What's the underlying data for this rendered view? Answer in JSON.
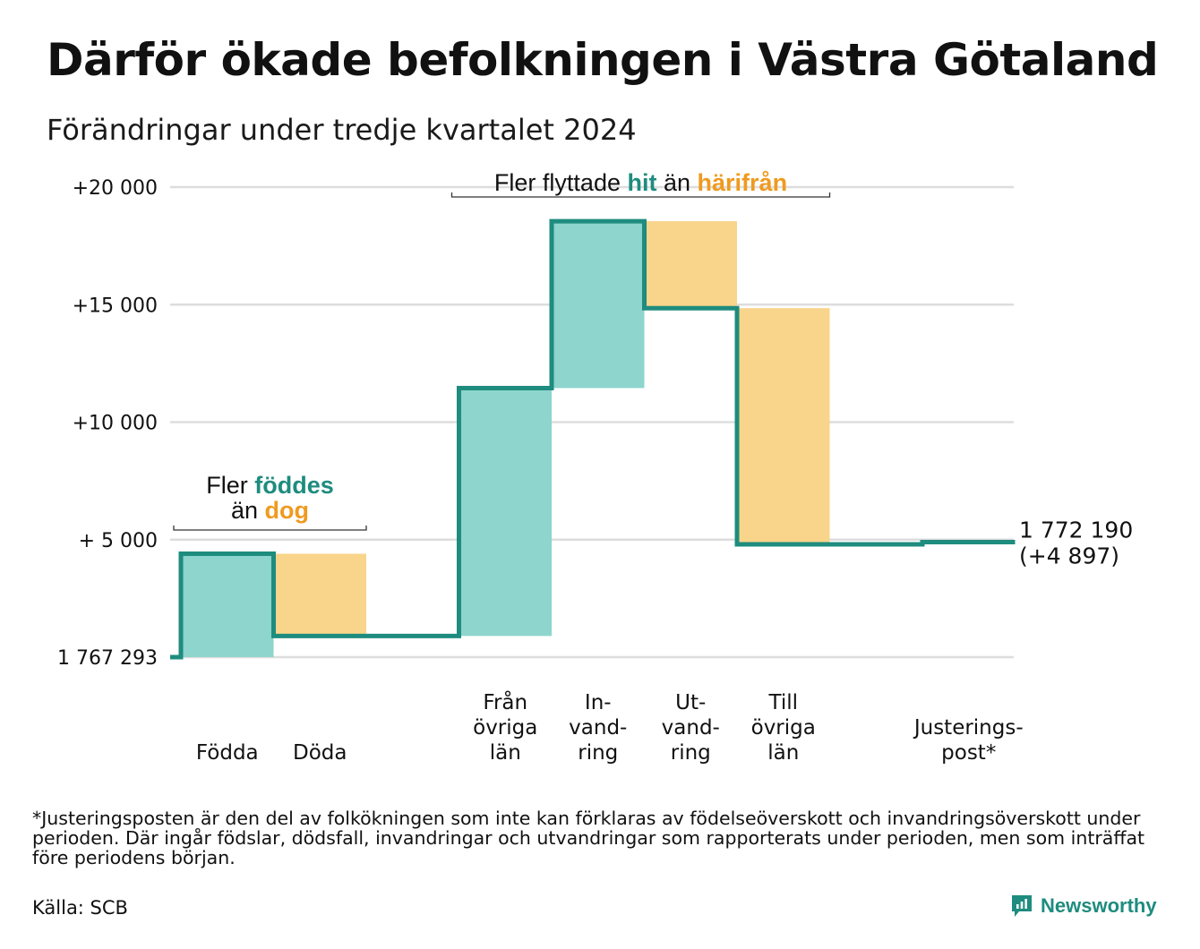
{
  "title": "Därför ökade befolkningen i Västra Götaland",
  "subtitle": "Förändringar under tredje kvartalet 2024",
  "colors": {
    "increase": "#8dd5cd",
    "decrease": "#f9d48b",
    "line": "#1e8c7e",
    "accent_orange": "#ef9a1f",
    "grid": "#dddddd"
  },
  "chart_data": {
    "type": "waterfall",
    "baseline_label": "1 767 293",
    "ylim": [
      0,
      20000
    ],
    "yticks": [
      {
        "value": 0,
        "label": "1 767 293"
      },
      {
        "value": 5000,
        "label": "+ 5 000"
      },
      {
        "value": 10000,
        "label": "+10 000"
      },
      {
        "value": 15000,
        "label": "+15 000"
      },
      {
        "value": 20000,
        "label": "+20 000"
      }
    ],
    "steps": [
      {
        "label": [
          "Födda"
        ],
        "start": 0,
        "end": 4400,
        "kind": "increase"
      },
      {
        "label": [
          "Döda"
        ],
        "start": 4400,
        "end": 900,
        "kind": "decrease"
      },
      {
        "label": [
          ""
        ],
        "start": 900,
        "end": 900,
        "kind": "none"
      },
      {
        "label": [
          "Från",
          "övriga",
          "län"
        ],
        "start": 900,
        "end": 11450,
        "kind": "increase"
      },
      {
        "label": [
          "In-",
          "vand-",
          "ring"
        ],
        "start": 11450,
        "end": 18550,
        "kind": "increase"
      },
      {
        "label": [
          "Ut-",
          "vand-",
          "ring"
        ],
        "start": 18550,
        "end": 14850,
        "kind": "decrease"
      },
      {
        "label": [
          "Till",
          "övriga",
          "län"
        ],
        "start": 14850,
        "end": 4800,
        "kind": "decrease"
      },
      {
        "label": [
          ""
        ],
        "start": 4800,
        "end": 4800,
        "kind": "none"
      },
      {
        "label": [
          "Justerings-",
          "post*"
        ],
        "start": 4800,
        "end": 4897,
        "kind": "adjustment"
      }
    ],
    "end_label": [
      "1 772 190",
      "(+4 897)"
    ],
    "annotations": [
      {
        "parts": [
          [
            "Fler ",
            "plain"
          ],
          [
            "föddes",
            "green"
          ]
        ],
        "parts2": [
          [
            "än ",
            "plain"
          ],
          [
            "dog",
            "orange"
          ]
        ],
        "from_step": 0,
        "to_step": 1
      },
      {
        "parts": [
          [
            "Fler flyttade ",
            "plain"
          ],
          [
            "hit",
            "green"
          ],
          [
            " än ",
            "plain"
          ],
          [
            "härifrån",
            "orange"
          ]
        ],
        "from_step": 3,
        "to_step": 6
      }
    ]
  },
  "footnote": "*Justeringsposten är den del av folkökningen som inte kan förklaras av födelseöverskott och invandringsöverskott under perioden. Där ingår födslar, dödsfall, invandringar och utvandringar som rapporterats under perioden, men som inträffat före periodens början.",
  "source": "Källa: SCB",
  "brand": {
    "name": "Newsworthy",
    "icon": "newsworthy-logo-icon"
  }
}
